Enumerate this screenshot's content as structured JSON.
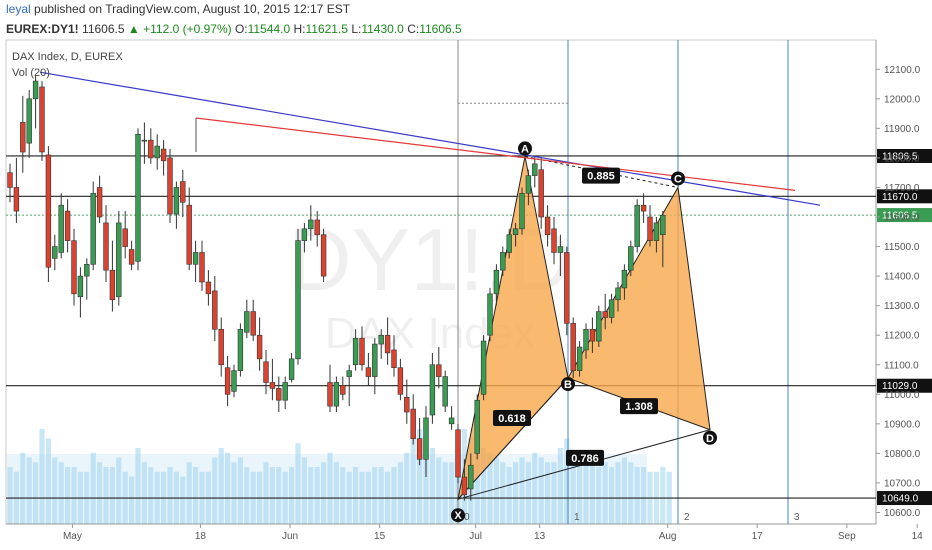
{
  "header": {
    "user": "leyal",
    "published": "published on TradingView.com, August 10, 2015 12:17 EST",
    "symbol": "EUREX:DY1!",
    "last": "11606.5",
    "change": "+112.0 (+0.97%)",
    "o_label": "O:",
    "o": "11544.0",
    "h_label": "H:",
    "h": "11621.5",
    "l_label": "L:",
    "l": "11430.0",
    "c_label": "C:",
    "c": "11606.5"
  },
  "chart_info": {
    "title": "DAX Index, D, EUREX",
    "volume_label": "Vol (20)"
  },
  "watermark": {
    "symbol": "DY1!,D",
    "name": "DAX Index"
  },
  "colors": {
    "up": "#3a9b53",
    "down": "#d9432f",
    "pattern_fill": "#f7a84a",
    "volume": "#9fd3ef",
    "trend_blue": "#3a3aca",
    "trend_red": "#e23a3a",
    "fib_vertical": "#4a86c8",
    "label_bg": "#111111"
  },
  "chart_data": {
    "type": "candlestick",
    "title": "DAX Index, D, EUREX",
    "ylim": [
      10560,
      12150
    ],
    "y_ticks": [
      "10600.0",
      "10700.0",
      "10800.0",
      "10900.0",
      "11000.0",
      "11100.0",
      "11200.0",
      "11300.0",
      "11400.0",
      "11500.0",
      "11600.0",
      "11700.0",
      "11800.0",
      "11900.0",
      "12000.0",
      "12100.0"
    ],
    "x_ticks": [
      "May",
      "18",
      "Jun",
      "15",
      "Jul",
      "13",
      "Aug",
      "17",
      "Sep",
      "14"
    ],
    "price_labels": [
      "11806.5",
      "11670.0",
      "11606.5",
      "11029.0",
      "10649.0"
    ],
    "pattern_points": [
      {
        "label": "X",
        "bar": 71,
        "price": 10645
      },
      {
        "label": "A",
        "bar": 82,
        "price": 11805
      },
      {
        "label": "B",
        "bar": 88,
        "price": 11055
      },
      {
        "label": "C",
        "bar": 106,
        "price": 11700
      },
      {
        "label": "D",
        "bar": 111,
        "price": 10880
      }
    ],
    "ratios": [
      {
        "label": "0.618",
        "price": 10920
      },
      {
        "label": "0.885",
        "price": 11740
      },
      {
        "label": "1.308",
        "price": 10960
      },
      {
        "label": "0.786",
        "price": 10785
      }
    ],
    "fib_time_labels": [
      "0",
      "1",
      "2",
      "3"
    ],
    "candles": [
      {
        "o": 11750,
        "h": 11780,
        "l": 11650,
        "c": 11700
      },
      {
        "o": 11700,
        "h": 11800,
        "l": 11580,
        "c": 11620
      },
      {
        "o": 11920,
        "h": 12010,
        "l": 11750,
        "c": 11820
      },
      {
        "o": 11850,
        "h": 12030,
        "l": 11800,
        "c": 12000
      },
      {
        "o": 12000,
        "h": 12080,
        "l": 11900,
        "c": 12060
      },
      {
        "o": 12040,
        "h": 12060,
        "l": 11790,
        "c": 11820
      },
      {
        "o": 11810,
        "h": 11840,
        "l": 11380,
        "c": 11430
      },
      {
        "o": 11460,
        "h": 11540,
        "l": 11420,
        "c": 11500
      },
      {
        "o": 11480,
        "h": 11680,
        "l": 11460,
        "c": 11640
      },
      {
        "o": 11620,
        "h": 11660,
        "l": 11480,
        "c": 11520
      },
      {
        "o": 11520,
        "h": 11560,
        "l": 11300,
        "c": 11340
      },
      {
        "o": 11330,
        "h": 11430,
        "l": 11260,
        "c": 11400
      },
      {
        "o": 11400,
        "h": 11460,
        "l": 11320,
        "c": 11440
      },
      {
        "o": 11440,
        "h": 11720,
        "l": 11420,
        "c": 11680
      },
      {
        "o": 11700,
        "h": 11740,
        "l": 11580,
        "c": 11600
      },
      {
        "o": 11580,
        "h": 11640,
        "l": 11380,
        "c": 11420
      },
      {
        "o": 11420,
        "h": 11520,
        "l": 11280,
        "c": 11320
      },
      {
        "o": 11330,
        "h": 11620,
        "l": 11300,
        "c": 11580
      },
      {
        "o": 11560,
        "h": 11620,
        "l": 11460,
        "c": 11500
      },
      {
        "o": 11490,
        "h": 11520,
        "l": 11420,
        "c": 11440
      },
      {
        "o": 11450,
        "h": 11900,
        "l": 11420,
        "c": 11880
      },
      {
        "o": 11860,
        "h": 11920,
        "l": 11780,
        "c": 11860
      },
      {
        "o": 11860,
        "h": 11900,
        "l": 11780,
        "c": 11800
      },
      {
        "o": 11800,
        "h": 11880,
        "l": 11760,
        "c": 11840
      },
      {
        "o": 11830,
        "h": 11860,
        "l": 11740,
        "c": 11790
      },
      {
        "o": 11800,
        "h": 11830,
        "l": 11580,
        "c": 11610
      },
      {
        "o": 11610,
        "h": 11720,
        "l": 11560,
        "c": 11700
      },
      {
        "o": 11720,
        "h": 11760,
        "l": 11600,
        "c": 11650
      },
      {
        "o": 11640,
        "h": 11700,
        "l": 11420,
        "c": 11440
      },
      {
        "o": 11440,
        "h": 11520,
        "l": 11380,
        "c": 11480
      },
      {
        "o": 11480,
        "h": 11520,
        "l": 11350,
        "c": 11380
      },
      {
        "o": 11380,
        "h": 11420,
        "l": 11300,
        "c": 11340
      },
      {
        "o": 11350,
        "h": 11400,
        "l": 11180,
        "c": 11220
      },
      {
        "o": 11220,
        "h": 11260,
        "l": 11060,
        "c": 11100
      },
      {
        "o": 11090,
        "h": 11130,
        "l": 10960,
        "c": 11000
      },
      {
        "o": 11010,
        "h": 11100,
        "l": 10990,
        "c": 11080
      },
      {
        "o": 11080,
        "h": 11240,
        "l": 11060,
        "c": 11220
      },
      {
        "o": 11210,
        "h": 11320,
        "l": 11190,
        "c": 11280
      },
      {
        "o": 11280,
        "h": 11320,
        "l": 11180,
        "c": 11200
      },
      {
        "o": 11200,
        "h": 11260,
        "l": 11080,
        "c": 11120
      },
      {
        "o": 11110,
        "h": 11150,
        "l": 11000,
        "c": 11040
      },
      {
        "o": 11040,
        "h": 11120,
        "l": 10980,
        "c": 11020
      },
      {
        "o": 11020,
        "h": 11060,
        "l": 10940,
        "c": 10980
      },
      {
        "o": 10980,
        "h": 11060,
        "l": 10950,
        "c": 11040
      },
      {
        "o": 11050,
        "h": 11140,
        "l": 11040,
        "c": 11120
      },
      {
        "o": 11120,
        "h": 11560,
        "l": 11100,
        "c": 11520
      },
      {
        "o": 11520,
        "h": 11580,
        "l": 11480,
        "c": 11560
      },
      {
        "o": 11560,
        "h": 11640,
        "l": 11520,
        "c": 11590
      },
      {
        "o": 11590,
        "h": 11620,
        "l": 11500,
        "c": 11540
      },
      {
        "o": 11540,
        "h": 11560,
        "l": 11380,
        "c": 11400
      },
      {
        "o": 11040,
        "h": 11100,
        "l": 10940,
        "c": 10960
      },
      {
        "o": 10960,
        "h": 11060,
        "l": 10940,
        "c": 11040
      },
      {
        "o": 11030,
        "h": 11060,
        "l": 10980,
        "c": 11000
      },
      {
        "o": 11060,
        "h": 11100,
        "l": 10960,
        "c": 11080
      },
      {
        "o": 11100,
        "h": 11220,
        "l": 11080,
        "c": 11190
      },
      {
        "o": 11190,
        "h": 11230,
        "l": 11080,
        "c": 11100
      },
      {
        "o": 11090,
        "h": 11140,
        "l": 11030,
        "c": 11060
      },
      {
        "o": 11060,
        "h": 11190,
        "l": 11000,
        "c": 11170
      },
      {
        "o": 11170,
        "h": 11220,
        "l": 11120,
        "c": 11200
      },
      {
        "o": 11200,
        "h": 11260,
        "l": 11100,
        "c": 11140
      },
      {
        "o": 11150,
        "h": 11200,
        "l": 11060,
        "c": 11090
      },
      {
        "o": 11090,
        "h": 11120,
        "l": 10980,
        "c": 11000
      },
      {
        "o": 10990,
        "h": 11050,
        "l": 10900,
        "c": 10940
      },
      {
        "o": 10950,
        "h": 11000,
        "l": 10830,
        "c": 10850
      },
      {
        "o": 10850,
        "h": 10920,
        "l": 10760,
        "c": 10780
      },
      {
        "o": 10780,
        "h": 10960,
        "l": 10720,
        "c": 10920
      },
      {
        "o": 10930,
        "h": 11140,
        "l": 10900,
        "c": 11100
      },
      {
        "o": 11100,
        "h": 11160,
        "l": 11020,
        "c": 11060
      },
      {
        "o": 10960,
        "h": 11080,
        "l": 10940,
        "c": 11060
      },
      {
        "o": 10900,
        "h": 10960,
        "l": 10880,
        "c": 10920
      },
      {
        "o": 10880,
        "h": 10900,
        "l": 10700,
        "c": 10720
      },
      {
        "o": 10720,
        "h": 10780,
        "l": 10640,
        "c": 10660
      },
      {
        "o": 10680,
        "h": 10800,
        "l": 10640,
        "c": 10760
      },
      {
        "o": 10800,
        "h": 11000,
        "l": 10780,
        "c": 10980
      },
      {
        "o": 11000,
        "h": 11200,
        "l": 10980,
        "c": 11180
      },
      {
        "o": 11200,
        "h": 11360,
        "l": 11180,
        "c": 11340
      },
      {
        "o": 11340,
        "h": 11440,
        "l": 11300,
        "c": 11420
      },
      {
        "o": 11420,
        "h": 11500,
        "l": 11400,
        "c": 11480
      },
      {
        "o": 11480,
        "h": 11560,
        "l": 11460,
        "c": 11540
      },
      {
        "o": 11540,
        "h": 11580,
        "l": 11500,
        "c": 11560
      },
      {
        "o": 11560,
        "h": 11700,
        "l": 11540,
        "c": 11680
      },
      {
        "o": 11680,
        "h": 11760,
        "l": 11640,
        "c": 11740
      },
      {
        "o": 11740,
        "h": 11805,
        "l": 11700,
        "c": 11780
      },
      {
        "o": 11760,
        "h": 11800,
        "l": 11560,
        "c": 11600
      },
      {
        "o": 11600,
        "h": 11640,
        "l": 11500,
        "c": 11540
      },
      {
        "o": 11560,
        "h": 11600,
        "l": 11440,
        "c": 11480
      },
      {
        "o": 11480,
        "h": 11540,
        "l": 11400,
        "c": 11500
      },
      {
        "o": 11480,
        "h": 11500,
        "l": 11200,
        "c": 11240
      },
      {
        "o": 11240,
        "h": 11260,
        "l": 11055,
        "c": 11080
      },
      {
        "o": 11080,
        "h": 11180,
        "l": 11060,
        "c": 11160
      },
      {
        "o": 11150,
        "h": 11240,
        "l": 11120,
        "c": 11220
      },
      {
        "o": 11220,
        "h": 11260,
        "l": 11140,
        "c": 11180
      },
      {
        "o": 11180,
        "h": 11300,
        "l": 11160,
        "c": 11280
      },
      {
        "o": 11280,
        "h": 11340,
        "l": 11220,
        "c": 11260
      },
      {
        "o": 11260,
        "h": 11340,
        "l": 11240,
        "c": 11320
      },
      {
        "o": 11320,
        "h": 11380,
        "l": 11280,
        "c": 11360
      },
      {
        "o": 11360,
        "h": 11440,
        "l": 11320,
        "c": 11420
      },
      {
        "o": 11420,
        "h": 11520,
        "l": 11400,
        "c": 11500
      },
      {
        "o": 11500,
        "h": 11660,
        "l": 11480,
        "c": 11640
      },
      {
        "o": 11640,
        "h": 11680,
        "l": 11580,
        "c": 11620
      },
      {
        "o": 11600,
        "h": 11640,
        "l": 11500,
        "c": 11520
      },
      {
        "o": 11520,
        "h": 11600,
        "l": 11480,
        "c": 11580
      },
      {
        "o": 11540,
        "h": 11620,
        "l": 11430,
        "c": 11606
      }
    ],
    "volume": [
      120,
      110,
      150,
      140,
      130,
      200,
      180,
      140,
      130,
      120,
      120,
      110,
      110,
      150,
      130,
      120,
      120,
      140,
      110,
      100,
      160,
      130,
      120,
      110,
      110,
      120,
      110,
      100,
      130,
      120,
      110,
      110,
      140,
      160,
      150,
      130,
      140,
      120,
      110,
      110,
      130,
      120,
      120,
      110,
      120,
      170,
      140,
      120,
      120,
      130,
      150,
      130,
      120,
      110,
      120,
      110,
      110,
      120,
      120,
      110,
      120,
      130,
      150,
      180,
      200,
      170,
      160,
      140,
      130,
      130,
      160,
      200,
      180,
      170,
      160,
      150,
      140,
      130,
      120,
      130,
      140,
      130,
      150,
      140,
      130,
      130,
      160,
      180,
      150,
      140,
      130,
      130,
      120,
      130,
      120,
      130,
      140,
      130,
      120,
      120,
      110,
      110,
      120,
      110
    ]
  }
}
